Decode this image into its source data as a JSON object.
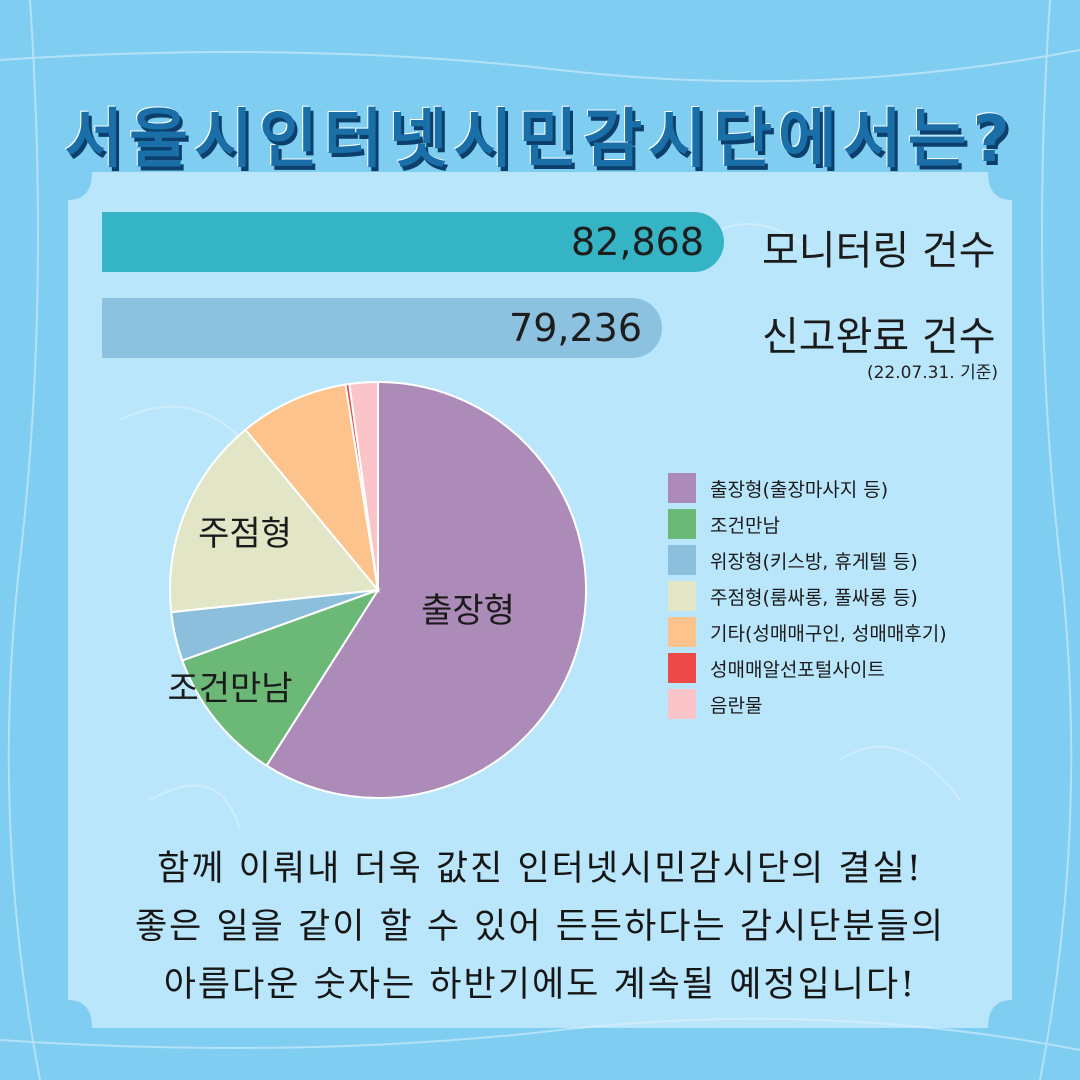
{
  "title": "서울시인터넷시민감시단에서는?",
  "colors": {
    "background": "#7fcdf0",
    "panel": "#b9e6fb",
    "bar1": "#35b4c6",
    "bar2": "#8cc1df",
    "title": "#1a6fa8"
  },
  "bars": [
    {
      "value": "82,868",
      "label": "모니터링 건수"
    },
    {
      "value": "79,236",
      "label": "신고완료 건수"
    }
  ],
  "note": "(22.07.31. 기준)",
  "chart_data": {
    "type": "pie",
    "slices": [
      {
        "name": "출장형(출장마사지 등)",
        "label": "출장형",
        "value": 59.0,
        "color": "#ad8bb9"
      },
      {
        "name": "조건만남",
        "label": "조건만남",
        "value": 10.5,
        "color": "#6cb877"
      },
      {
        "name": "위장형(키스방, 휴게텔 등)",
        "label": "",
        "value": 3.8,
        "color": "#8bbfdc"
      },
      {
        "name": "주점형(룸싸롱, 풀싸롱 등)",
        "label": "주점형",
        "value": 15.7,
        "color": "#e2e6c6"
      },
      {
        "name": "기타(성매매구인, 성매매후기)",
        "label": "",
        "value": 8.5,
        "color": "#fcc38c"
      },
      {
        "name": "성매매알선포털사이트",
        "label": "",
        "value": 0.3,
        "color": "#ee4a4a"
      },
      {
        "name": "음란물",
        "label": "",
        "value": 2.2,
        "color": "#fbc4c8"
      }
    ],
    "legend_position": "right"
  },
  "bottom_text": [
    "함께 이뤄내 더욱 값진 인터넷시민감시단의 결실!",
    "좋은 일을 같이 할 수 있어 든든하다는 감시단분들의",
    "아름다운 숫자는 하반기에도 계속될 예정입니다!"
  ]
}
